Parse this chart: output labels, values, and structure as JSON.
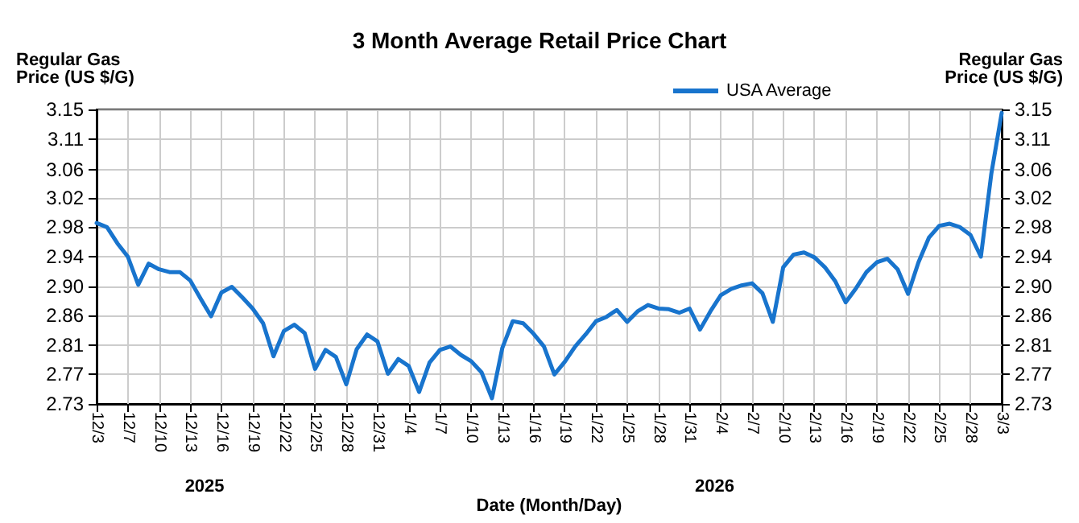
{
  "chart_data": {
    "type": "line",
    "title": "3 Month Average Retail Price Chart",
    "xlabel": "Date (Month/Day)",
    "ylabel": "Regular Gas\nPrice (US $/G)",
    "y2label": "Regular Gas\nPrice (US $/G)",
    "annotations": [
      "2025",
      "2026"
    ],
    "categories": [
      "12/3",
      null,
      null,
      "12/7",
      null,
      null,
      "12/10",
      null,
      null,
      "12/13",
      null,
      null,
      "12/16",
      null,
      null,
      "12/19",
      null,
      null,
      "12/22",
      null,
      null,
      "12/25",
      null,
      null,
      "12/28",
      null,
      null,
      "12/31",
      null,
      null,
      "1/4",
      null,
      null,
      "1/7",
      null,
      null,
      "1/10",
      null,
      null,
      "1/13",
      null,
      null,
      "1/16",
      null,
      null,
      "1/19",
      null,
      null,
      "1/22",
      null,
      null,
      "1/25",
      null,
      null,
      "1/28",
      null,
      null,
      "1/31",
      null,
      null,
      "2/4",
      null,
      null,
      "2/7",
      null,
      null,
      "2/10",
      null,
      null,
      "2/13",
      null,
      null,
      "2/16",
      null,
      null,
      "2/19",
      null,
      null,
      "2/22",
      null,
      null,
      "2/25",
      null,
      null,
      "2/28",
      null,
      null,
      "3/3"
    ],
    "series": [
      {
        "name": "USA Average",
        "color": "#1874cd",
        "values": [
          2.988,
          2.982,
          2.959,
          2.94,
          2.9,
          2.93,
          2.922,
          2.918,
          2.918,
          2.906,
          2.88,
          2.855,
          2.889,
          2.897,
          2.882,
          2.866,
          2.845,
          2.798,
          2.834,
          2.843,
          2.831,
          2.78,
          2.807,
          2.797,
          2.758,
          2.808,
          2.829,
          2.819,
          2.773,
          2.794,
          2.784,
          2.747,
          2.789,
          2.807,
          2.812,
          2.8,
          2.791,
          2.775,
          2.738,
          2.81,
          2.848,
          2.845,
          2.83,
          2.812,
          2.772,
          2.79,
          2.812,
          2.829,
          2.848,
          2.854,
          2.864,
          2.847,
          2.862,
          2.871,
          2.866,
          2.865,
          2.86,
          2.866,
          2.836,
          2.862,
          2.885,
          2.894,
          2.899,
          2.902,
          2.888,
          2.847,
          2.925,
          2.943,
          2.946,
          2.939,
          2.925,
          2.905,
          2.875,
          2.895,
          2.918,
          2.932,
          2.937,
          2.922,
          2.887,
          2.932,
          2.967,
          2.984,
          2.987,
          2.982,
          2.971,
          2.94,
          3.058,
          3.145
        ]
      }
    ],
    "ylim": [
      2.73,
      3.15
    ],
    "yticks": [
      {
        "value": 2.73,
        "label": "2.73"
      },
      {
        "value": 2.772,
        "label": "2.77"
      },
      {
        "value": 2.814,
        "label": "2.81"
      },
      {
        "value": 2.856,
        "label": "2.86"
      },
      {
        "value": 2.898,
        "label": "2.90"
      },
      {
        "value": 2.94,
        "label": "2.94"
      },
      {
        "value": 2.982,
        "label": "2.98"
      },
      {
        "value": 3.024,
        "label": "3.02"
      },
      {
        "value": 3.064,
        "label": "3.06"
      },
      {
        "value": 3.108,
        "label": "3.11"
      },
      {
        "value": 3.15,
        "label": "3.15"
      }
    ],
    "y2lim": [
      2.73,
      3.15
    ],
    "y2ticks": [
      {
        "value": 2.73,
        "label": "2.73"
      },
      {
        "value": 2.772,
        "label": "2.77"
      },
      {
        "value": 2.814,
        "label": "2.81"
      },
      {
        "value": 2.856,
        "label": "2.86"
      },
      {
        "value": 2.898,
        "label": "2.90"
      },
      {
        "value": 2.94,
        "label": "2.94"
      },
      {
        "value": 2.982,
        "label": "2.98"
      },
      {
        "value": 3.024,
        "label": "3.02"
      },
      {
        "value": 3.064,
        "label": "3.06"
      },
      {
        "value": 3.108,
        "label": "3.11"
      },
      {
        "value": 3.15,
        "label": "3.15"
      }
    ],
    "grid": true,
    "legend": "top",
    "marker": "none",
    "line_style": "solid"
  }
}
